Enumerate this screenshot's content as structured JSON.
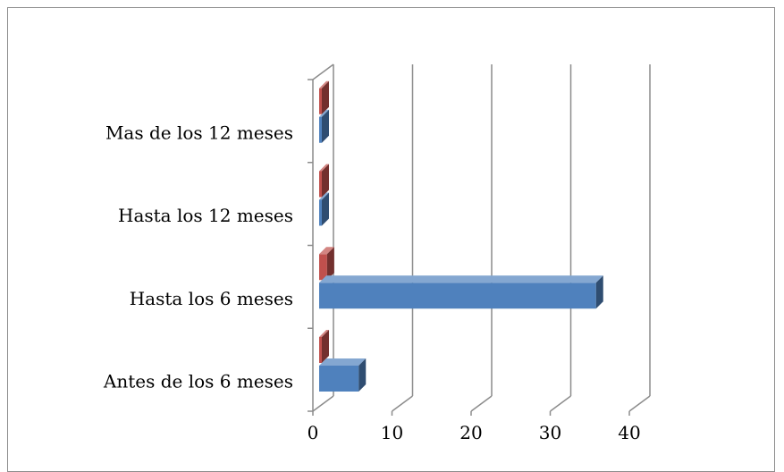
{
  "chart_data": {
    "type": "bar",
    "orientation": "horizontal",
    "style": "3d-clustered",
    "categories": [
      "Antes de los 6 meses",
      "Hasta los 6 meses",
      "Hasta los 12 meses",
      "Mas de los 12 meses"
    ],
    "series": [
      {
        "values": [
          5,
          35,
          0,
          0
        ],
        "color": "#4f81bd"
      },
      {
        "values": [
          0,
          1,
          0,
          0
        ],
        "color": "#c0504d"
      }
    ],
    "xlim": [
      0,
      40
    ],
    "x_ticks": [
      "0",
      "10",
      "20",
      "30",
      "40"
    ],
    "grid": true,
    "legend": "none"
  }
}
